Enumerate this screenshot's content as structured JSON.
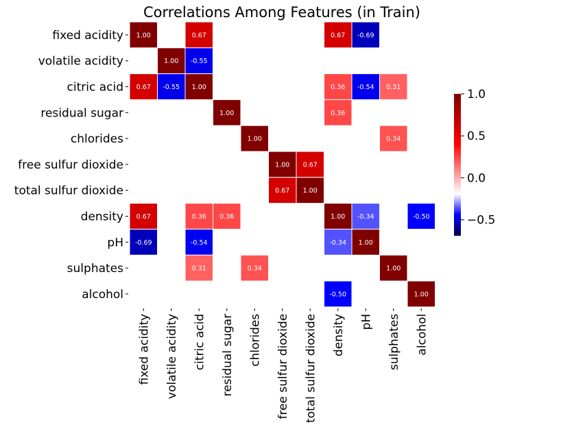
{
  "chart_data": {
    "type": "heatmap",
    "title": "Correlations Among Features (in Train)",
    "labels": [
      "fixed acidity",
      "volatile acidity",
      "citric acid",
      "residual sugar",
      "chlorides",
      "free sulfur dioxide",
      "total sulfur dioxide",
      "density",
      "pH",
      "sulphates",
      "alcohol"
    ],
    "cells": [
      {
        "row": 0,
        "col": 0,
        "value": 1.0
      },
      {
        "row": 0,
        "col": 2,
        "value": 0.67
      },
      {
        "row": 0,
        "col": 7,
        "value": 0.67
      },
      {
        "row": 0,
        "col": 8,
        "value": -0.69
      },
      {
        "row": 1,
        "col": 1,
        "value": 1.0
      },
      {
        "row": 1,
        "col": 2,
        "value": -0.55
      },
      {
        "row": 2,
        "col": 0,
        "value": 0.67
      },
      {
        "row": 2,
        "col": 1,
        "value": -0.55
      },
      {
        "row": 2,
        "col": 2,
        "value": 1.0
      },
      {
        "row": 2,
        "col": 7,
        "value": 0.36
      },
      {
        "row": 2,
        "col": 8,
        "value": -0.54
      },
      {
        "row": 2,
        "col": 9,
        "value": 0.31
      },
      {
        "row": 3,
        "col": 3,
        "value": 1.0
      },
      {
        "row": 3,
        "col": 7,
        "value": 0.36
      },
      {
        "row": 4,
        "col": 4,
        "value": 1.0
      },
      {
        "row": 4,
        "col": 9,
        "value": 0.34
      },
      {
        "row": 5,
        "col": 5,
        "value": 1.0
      },
      {
        "row": 5,
        "col": 6,
        "value": 0.67
      },
      {
        "row": 6,
        "col": 5,
        "value": 0.67
      },
      {
        "row": 6,
        "col": 6,
        "value": 1.0
      },
      {
        "row": 7,
        "col": 0,
        "value": 0.67
      },
      {
        "row": 7,
        "col": 2,
        "value": 0.36
      },
      {
        "row": 7,
        "col": 3,
        "value": 0.36
      },
      {
        "row": 7,
        "col": 7,
        "value": 1.0
      },
      {
        "row": 7,
        "col": 8,
        "value": -0.34
      },
      {
        "row": 7,
        "col": 10,
        "value": -0.5
      },
      {
        "row": 8,
        "col": 0,
        "value": -0.69
      },
      {
        "row": 8,
        "col": 2,
        "value": -0.54
      },
      {
        "row": 8,
        "col": 7,
        "value": -0.34
      },
      {
        "row": 8,
        "col": 8,
        "value": 1.0
      },
      {
        "row": 9,
        "col": 2,
        "value": 0.31
      },
      {
        "row": 9,
        "col": 4,
        "value": 0.34
      },
      {
        "row": 9,
        "col": 9,
        "value": 1.0
      },
      {
        "row": 10,
        "col": 7,
        "value": -0.5
      },
      {
        "row": 10,
        "col": 10,
        "value": 1.0
      }
    ],
    "colormap": "seismic",
    "vmin": -0.69,
    "vmax": 1.0,
    "annotation_format": "0.00",
    "colorbar": {
      "ticks": [
        1.0,
        0.5,
        0.0,
        -0.5
      ],
      "tick_labels": [
        "1.0",
        "0.5",
        "0.0",
        "−0.5"
      ]
    },
    "cell_borders": true,
    "grid": false,
    "legend": "colorbar-right"
  }
}
